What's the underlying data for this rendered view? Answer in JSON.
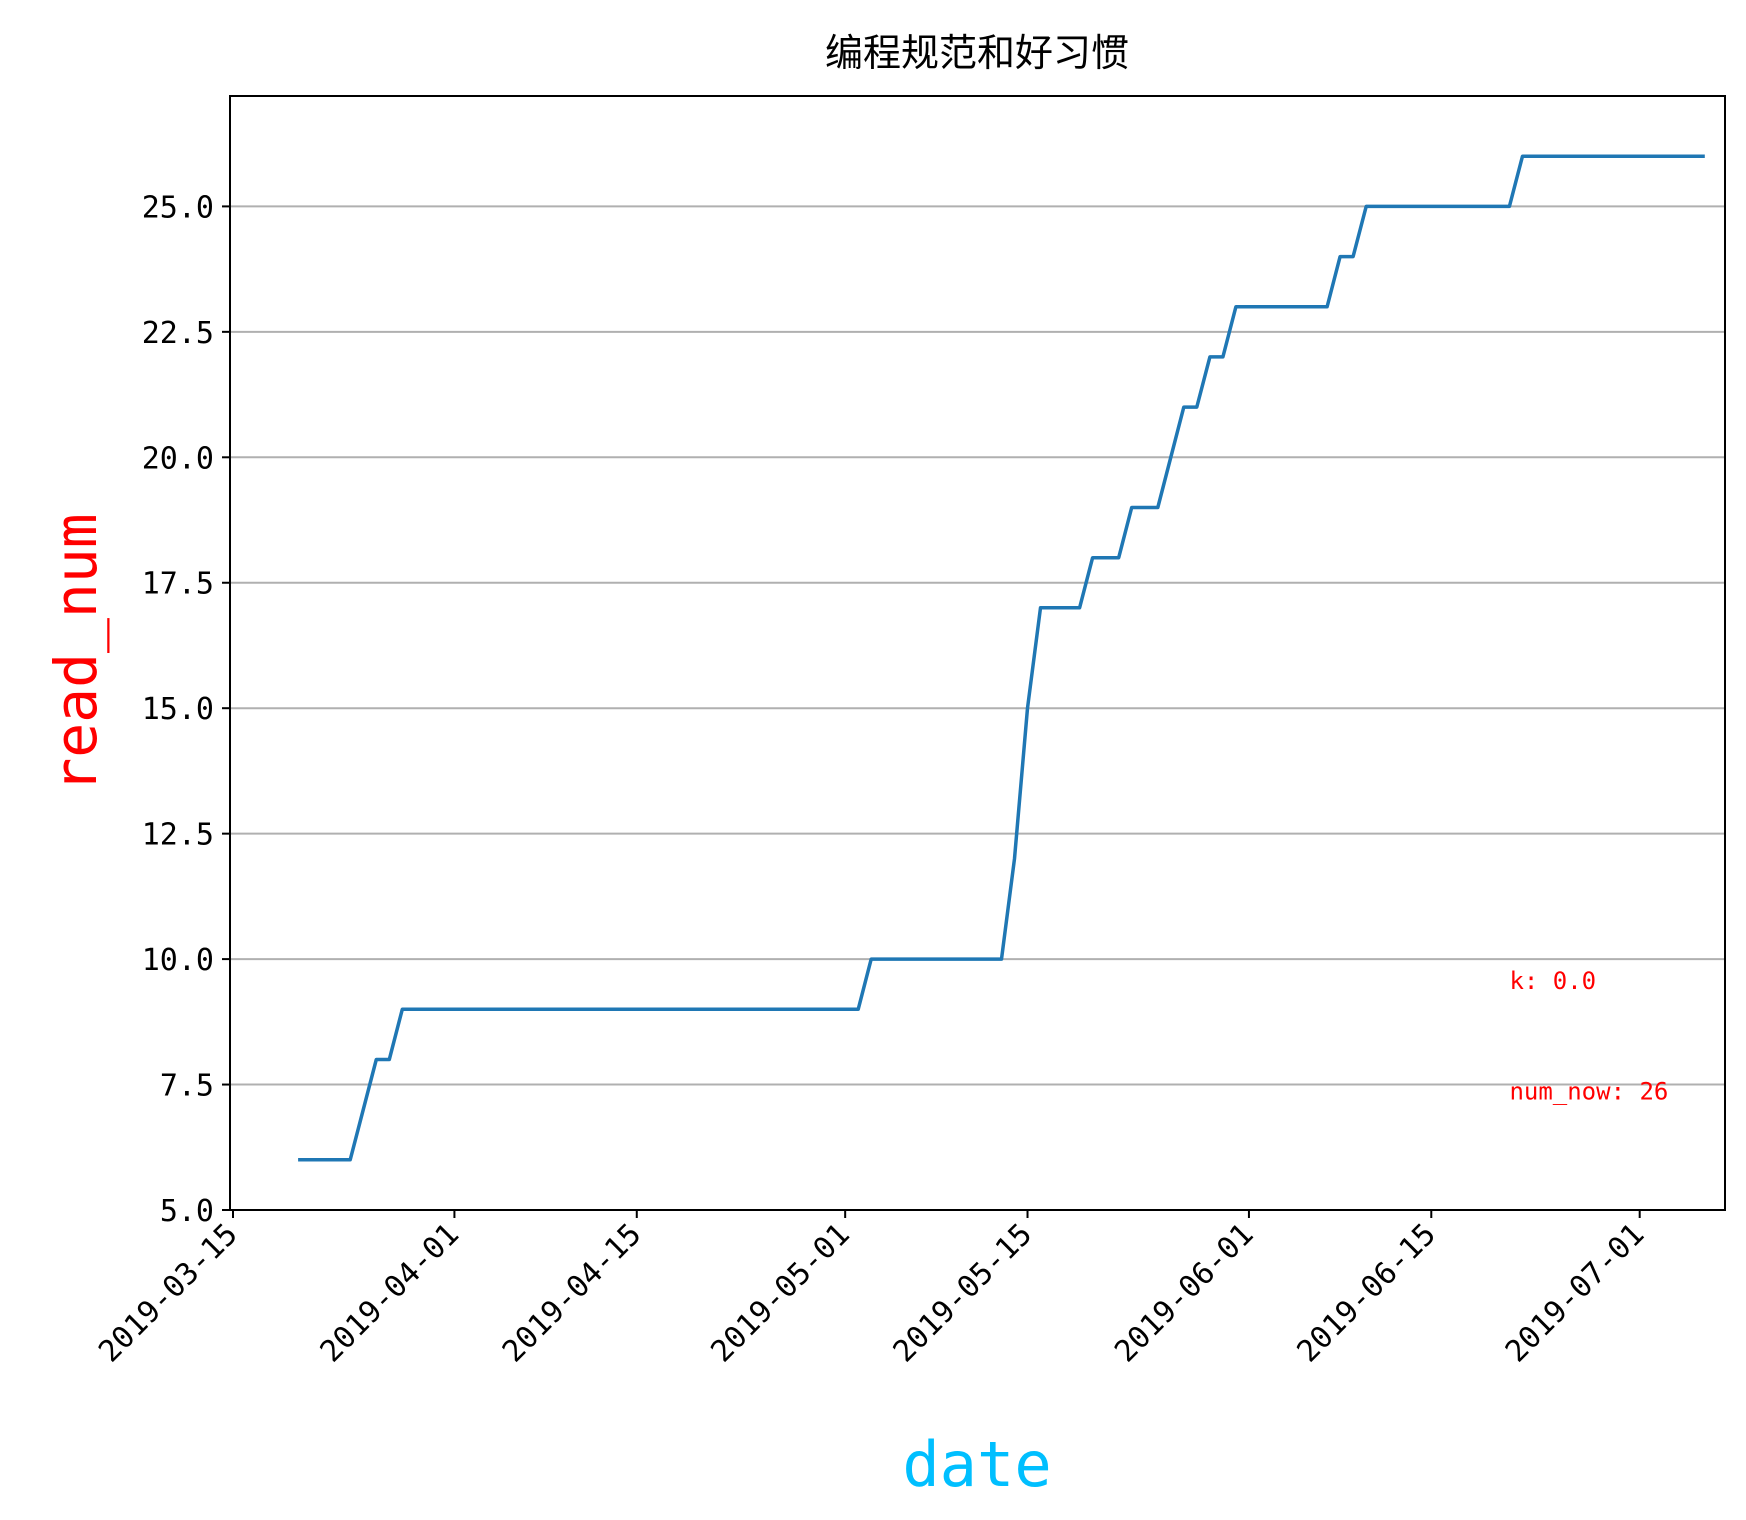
{
  "chart_data": {
    "type": "line",
    "title": "编程规范和好习惯",
    "xlabel": "date",
    "ylabel": "read_num",
    "xlim": [
      "2019-03-15",
      "2019-07-07"
    ],
    "ylim": [
      5.0,
      27.2
    ],
    "x_ticks": [
      "2019-03-15",
      "2019-04-01",
      "2019-04-15",
      "2019-05-01",
      "2019-05-15",
      "2019-06-01",
      "2019-06-15",
      "2019-07-01"
    ],
    "y_ticks": [
      "5.0",
      "7.5",
      "10.0",
      "12.5",
      "15.0",
      "17.5",
      "20.0",
      "22.5",
      "25.0"
    ],
    "grid": "y-major",
    "series": [
      {
        "x": [
          "2019-03-20",
          "2019-03-24",
          "2019-03-26",
          "2019-03-27",
          "2019-03-28",
          "2019-05-02",
          "2019-05-03",
          "2019-05-13",
          "2019-05-14",
          "2019-05-15",
          "2019-05-16",
          "2019-05-19",
          "2019-05-20",
          "2019-05-22",
          "2019-05-23",
          "2019-05-25",
          "2019-05-27",
          "2019-05-28",
          "2019-05-29",
          "2019-05-30",
          "2019-05-31",
          "2019-06-07",
          "2019-06-08",
          "2019-06-09",
          "2019-06-10",
          "2019-06-21",
          "2019-06-22",
          "2019-07-06"
        ],
        "y": [
          6,
          6,
          8,
          8,
          9,
          9,
          10,
          10,
          12,
          15,
          17,
          17,
          18,
          18,
          19,
          19,
          21,
          21,
          22,
          22,
          23,
          23,
          24,
          24,
          25,
          25,
          26,
          26
        ]
      }
    ],
    "annotations": [
      {
        "text": "k: 0.0",
        "x": "2019-06-21",
        "y": 9.4
      },
      {
        "text": "num_now: 26",
        "x": "2019-06-21",
        "y": 7.2
      }
    ]
  },
  "colors": {
    "line": "#1f77b4",
    "grid": "#b0b0b0",
    "ylabel": "#ff0000",
    "xlabel": "#00bfff",
    "annotation": "#ff0000"
  }
}
